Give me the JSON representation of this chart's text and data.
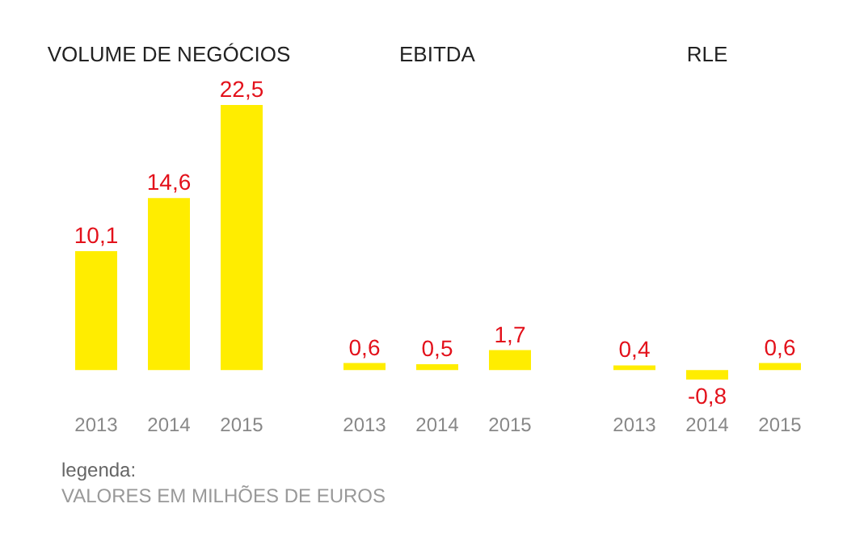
{
  "chart_data": [
    {
      "type": "bar",
      "title": "VOLUME DE NEGÓCIOS",
      "categories": [
        "2013",
        "2014",
        "2015"
      ],
      "values": [
        10.1,
        14.6,
        22.5
      ],
      "value_labels": [
        "10,1",
        "14,6",
        "22,5"
      ],
      "color": "#ffed00",
      "annotations": [
        "legenda:",
        "VALORES EM MILHÕES DE EUROS"
      ]
    },
    {
      "type": "bar",
      "title": "EBITDA",
      "categories": [
        "2013",
        "2014",
        "2015"
      ],
      "values": [
        0.6,
        0.5,
        1.7
      ],
      "value_labels": [
        "0,6",
        "0,5",
        "1,7"
      ],
      "color": "#ffed00"
    },
    {
      "type": "bar",
      "title": "RLE",
      "categories": [
        "2013",
        "2014",
        "2015"
      ],
      "values": [
        0.4,
        -0.8,
        0.6
      ],
      "value_labels": [
        "0,4",
        "-0,8",
        "0,6"
      ],
      "color": "#ffed00"
    }
  ]
}
